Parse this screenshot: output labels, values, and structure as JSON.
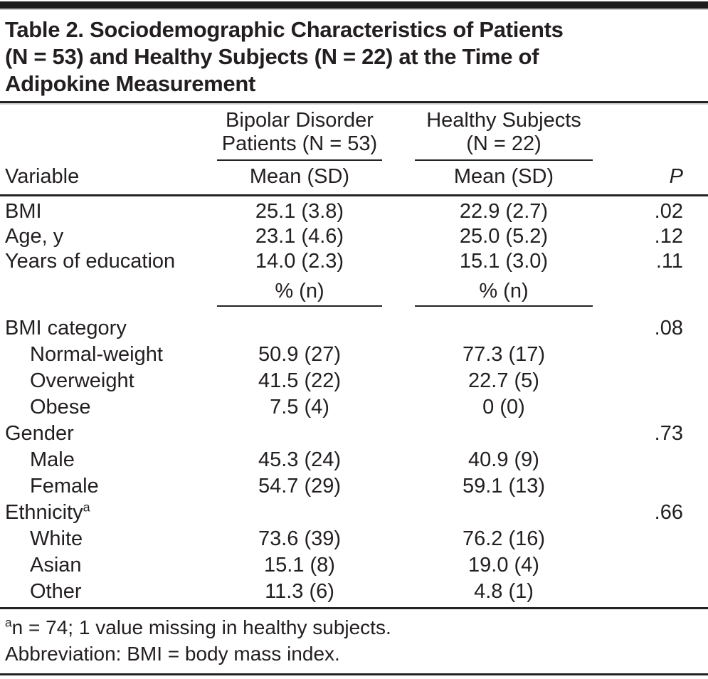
{
  "page": {
    "title_lines": [
      "Table 2. Sociodemographic Characteristics of Patients",
      "(N = 53) and Healthy Subjects (N = 22) at the Time of",
      "Adipokine Measurement"
    ]
  },
  "header": {
    "variable_label": "Variable",
    "group1_line1": "Bipolar Disorder",
    "group1_line2": "Patients (N = 53)",
    "group1_sub": "Mean (SD)",
    "group2_line1": "Healthy Subjects",
    "group2_line2": "(N = 22)",
    "group2_sub": "Mean (SD)",
    "p_label": "P"
  },
  "mean_rows": [
    {
      "label": "BMI",
      "bipolar": "25.1 (3.8)",
      "healthy": "22.9 (2.7)",
      "p": ".02"
    },
    {
      "label": "Age, y",
      "bipolar": "23.1 (4.6)",
      "healthy": "25.0 (5.2)",
      "p": ".12"
    },
    {
      "label": "Years of education",
      "bipolar": "14.0 (2.3)",
      "healthy": "15.1 (3.0)",
      "p": ".11"
    }
  ],
  "percent_subheader": {
    "group1": "% (n)",
    "group2": "% (n)"
  },
  "percent_rows": [
    {
      "label": "BMI category",
      "sup": "",
      "bipolar": "",
      "healthy": "",
      "p": ".08"
    },
    {
      "label": "Normal-weight",
      "sup": "",
      "bipolar": "50.9 (27)",
      "healthy": "77.3 (17)",
      "p": ""
    },
    {
      "label": "Overweight",
      "sup": "",
      "bipolar": "41.5 (22)",
      "healthy": "22.7 (5)",
      "p": ""
    },
    {
      "label": "Obese",
      "sup": "",
      "bipolar": "7.5 (4)",
      "healthy": "0 (0)",
      "p": ""
    },
    {
      "label": "Gender",
      "sup": "",
      "bipolar": "",
      "healthy": "",
      "p": ".73"
    },
    {
      "label": "Male",
      "sup": "",
      "bipolar": "45.3 (24)",
      "healthy": "40.9 (9)",
      "p": ""
    },
    {
      "label": "Female",
      "sup": "",
      "bipolar": "54.7 (29)",
      "healthy": "59.1 (13)",
      "p": ""
    },
    {
      "label": "Ethnicity",
      "sup": "a",
      "bipolar": "",
      "healthy": "",
      "p": ".66"
    },
    {
      "label": "White",
      "sup": "",
      "bipolar": "73.6 (39)",
      "healthy": "76.2 (16)",
      "p": ""
    },
    {
      "label": "Asian",
      "sup": "",
      "bipolar": "15.1 (8)",
      "healthy": "19.0 (4)",
      "p": ""
    },
    {
      "label": "Other",
      "sup": "",
      "bipolar": "11.3 (6)",
      "healthy": "4.8 (1)",
      "p": ""
    }
  ],
  "footnotes": [
    {
      "sup": "a",
      "text": "n = 74; 1 value missing in healthy subjects."
    },
    {
      "sup": "",
      "text": "Abbreviation: BMI = body mass index."
    }
  ],
  "colors": {
    "text": "#231f20",
    "rule": "#232323",
    "background": "#ffffff"
  }
}
